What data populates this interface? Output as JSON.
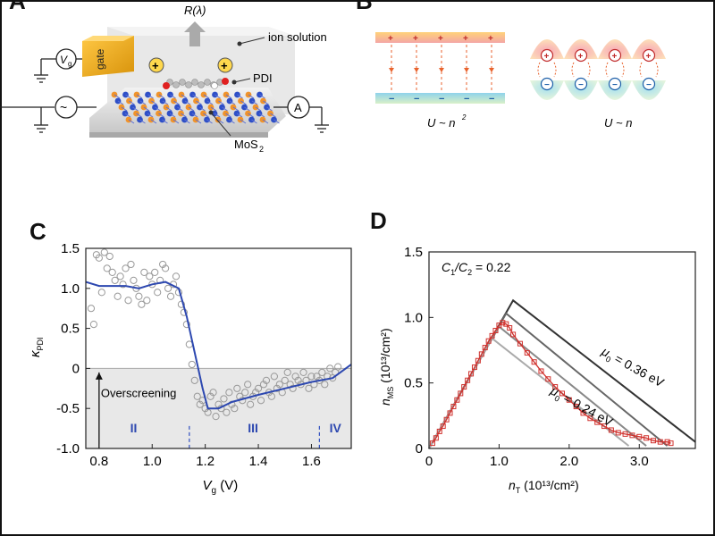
{
  "panel_labels": {
    "a": "A",
    "b": "B",
    "c": "C",
    "d": "D"
  },
  "schematic_a": {
    "response": "R(λ)",
    "ion_solution": "ion solution",
    "gate": "gate",
    "vg": "V",
    "vg_sub": "g",
    "pdi": "PDI",
    "mos2": "MoS",
    "mos2_sub": "2",
    "ammeter": "A",
    "ac": "~",
    "plus": "+"
  },
  "schematic_b": {
    "left_formula": "U ~ n",
    "left_formula_sup": "2",
    "right_formula": "U ~ n"
  },
  "chart_data": [
    {
      "panel": "C",
      "type": "scatter",
      "xlabel": "V",
      "xlabel_sub": "g",
      "xlabel_unit": "(V)",
      "ylabel": "κ",
      "ylabel_sub": "PDI",
      "xlim": [
        0.75,
        1.75
      ],
      "ylim": [
        -1.0,
        1.5
      ],
      "xticks": [
        "0.8",
        "1.0",
        "1.2",
        "1.4",
        "1.6"
      ],
      "xtick_values": [
        0.8,
        1.0,
        1.2,
        1.4,
        1.6
      ],
      "yticks": [
        "1.5",
        "1.0",
        "0.5",
        "0",
        "-0.5",
        "-1.0"
      ],
      "ytick_values": [
        1.5,
        1.0,
        0.5,
        0,
        -0.5,
        -1.0
      ],
      "annotation": "Overscreening",
      "regions": [
        "II",
        "III",
        "IV"
      ],
      "region_centers": [
        0.93,
        1.38,
        1.69
      ],
      "region_boundaries": [
        1.14,
        1.63
      ],
      "shaded_below": 0,
      "scatter": {
        "x": [
          0.77,
          0.78,
          0.79,
          0.8,
          0.81,
          0.82,
          0.83,
          0.84,
          0.85,
          0.86,
          0.87,
          0.88,
          0.89,
          0.9,
          0.91,
          0.92,
          0.93,
          0.94,
          0.95,
          0.96,
          0.97,
          0.98,
          0.99,
          1.0,
          1.01,
          1.02,
          1.03,
          1.04,
          1.05,
          1.06,
          1.07,
          1.08,
          1.09,
          1.1,
          1.11,
          1.12,
          1.13,
          1.14,
          1.15,
          1.16,
          1.17,
          1.18,
          1.19,
          1.2,
          1.21,
          1.22,
          1.23,
          1.24,
          1.25,
          1.26,
          1.27,
          1.28,
          1.29,
          1.3,
          1.31,
          1.32,
          1.33,
          1.34,
          1.35,
          1.36,
          1.37,
          1.38,
          1.39,
          1.4,
          1.41,
          1.42,
          1.43,
          1.44,
          1.45,
          1.46,
          1.47,
          1.48,
          1.49,
          1.5,
          1.51,
          1.52,
          1.53,
          1.54,
          1.55,
          1.56,
          1.57,
          1.58,
          1.59,
          1.6,
          1.61,
          1.62,
          1.63,
          1.64,
          1.65,
          1.66,
          1.67,
          1.68,
          1.69,
          1.7
        ],
        "y": [
          0.75,
          0.55,
          1.42,
          1.38,
          0.95,
          1.45,
          1.25,
          1.4,
          1.2,
          1.1,
          0.9,
          1.15,
          1.05,
          1.25,
          0.85,
          1.3,
          1.1,
          1.0,
          0.9,
          0.8,
          1.2,
          0.85,
          1.15,
          1.05,
          1.2,
          0.95,
          1.1,
          1.3,
          1.25,
          1.0,
          0.9,
          1.05,
          1.15,
          0.95,
          0.8,
          0.7,
          0.55,
          0.3,
          0.05,
          -0.15,
          -0.35,
          -0.45,
          -0.4,
          -0.5,
          -0.55,
          -0.35,
          -0.3,
          -0.6,
          -0.45,
          -0.5,
          -0.38,
          -0.55,
          -0.3,
          -0.45,
          -0.5,
          -0.25,
          -0.35,
          -0.4,
          -0.3,
          -0.2,
          -0.45,
          -0.35,
          -0.3,
          -0.25,
          -0.4,
          -0.2,
          -0.15,
          -0.3,
          -0.35,
          -0.1,
          -0.25,
          -0.2,
          -0.3,
          -0.15,
          -0.05,
          -0.2,
          -0.25,
          -0.1,
          -0.15,
          -0.2,
          -0.05,
          -0.15,
          -0.25,
          -0.1,
          -0.2,
          -0.1,
          -0.15,
          -0.05,
          -0.2,
          -0.1,
          0.0,
          -0.12,
          -0.05,
          0.02
        ]
      },
      "line": {
        "x": [
          0.75,
          0.8,
          0.9,
          0.95,
          1.0,
          1.05,
          1.1,
          1.13,
          1.16,
          1.19,
          1.21,
          1.25,
          1.3,
          1.4,
          1.5,
          1.6,
          1.68,
          1.75
        ],
        "y": [
          1.08,
          1.03,
          1.03,
          1.0,
          1.05,
          1.08,
          1.0,
          0.65,
          0.2,
          -0.25,
          -0.5,
          -0.5,
          -0.42,
          -0.33,
          -0.25,
          -0.17,
          -0.12,
          0.05
        ]
      }
    },
    {
      "panel": "D",
      "type": "line",
      "xlabel": "n",
      "xlabel_sub": "T",
      "xlabel_unit": "(10¹³/cm²)",
      "ylabel": "n",
      "ylabel_sub": "MS",
      "ylabel_unit": "(10¹³/cm²)",
      "xlim": [
        0,
        3.8
      ],
      "ylim": [
        0,
        1.5
      ],
      "xticks": [
        "0",
        "1.0",
        "2.0",
        "3.0"
      ],
      "xtick_values": [
        0,
        1.0,
        2.0,
        3.0
      ],
      "yticks": [
        "1.5",
        "1.0",
        "0.5",
        "0"
      ],
      "ytick_values": [
        1.5,
        1.0,
        0.5,
        0
      ],
      "ratio_label": "C",
      "ratio_label_sub1": "1",
      "ratio_label_mid": "/C",
      "ratio_label_sub2": "2",
      "ratio_value": " = 0.22",
      "annotations": [
        {
          "mu": "μ",
          "sub": "0",
          "text": " = 0.36 eV"
        },
        {
          "mu": "μ",
          "sub": "0",
          "text": " = 0.24 eV"
        }
      ],
      "series": [
        {
          "x": [
            0,
            1.2,
            3.8
          ],
          "y": [
            0,
            1.13,
            0.05
          ],
          "color": "#333333"
        },
        {
          "x": [
            0,
            1.1,
            3.4
          ],
          "y": [
            0,
            1.03,
            0.02
          ],
          "color": "#666666"
        },
        {
          "x": [
            0,
            1.0,
            3.1
          ],
          "y": [
            0,
            0.93,
            0.02
          ],
          "color": "#888888"
        },
        {
          "x": [
            0,
            0.9,
            2.85
          ],
          "y": [
            0,
            0.84,
            0.02
          ],
          "color": "#aaaaaa"
        }
      ],
      "experimental": {
        "x": [
          0.05,
          0.1,
          0.15,
          0.2,
          0.25,
          0.3,
          0.35,
          0.4,
          0.45,
          0.5,
          0.55,
          0.6,
          0.65,
          0.7,
          0.75,
          0.8,
          0.85,
          0.9,
          0.95,
          1.0,
          1.05,
          1.1,
          1.15,
          1.2,
          1.3,
          1.4,
          1.5,
          1.6,
          1.7,
          1.8,
          1.9,
          2.0,
          2.1,
          2.2,
          2.3,
          2.4,
          2.5,
          2.6,
          2.7,
          2.8,
          2.9,
          3.0,
          3.1,
          3.2,
          3.3,
          3.4,
          3.45
        ],
        "y": [
          0.04,
          0.08,
          0.13,
          0.17,
          0.22,
          0.27,
          0.32,
          0.37,
          0.42,
          0.47,
          0.52,
          0.57,
          0.62,
          0.67,
          0.72,
          0.77,
          0.82,
          0.86,
          0.9,
          0.94,
          0.96,
          0.95,
          0.92,
          0.87,
          0.8,
          0.73,
          0.66,
          0.59,
          0.53,
          0.47,
          0.42,
          0.37,
          0.32,
          0.27,
          0.23,
          0.2,
          0.17,
          0.14,
          0.12,
          0.11,
          0.1,
          0.09,
          0.08,
          0.06,
          0.05,
          0.05,
          0.04
        ],
        "color": "#d0312d"
      }
    }
  ]
}
